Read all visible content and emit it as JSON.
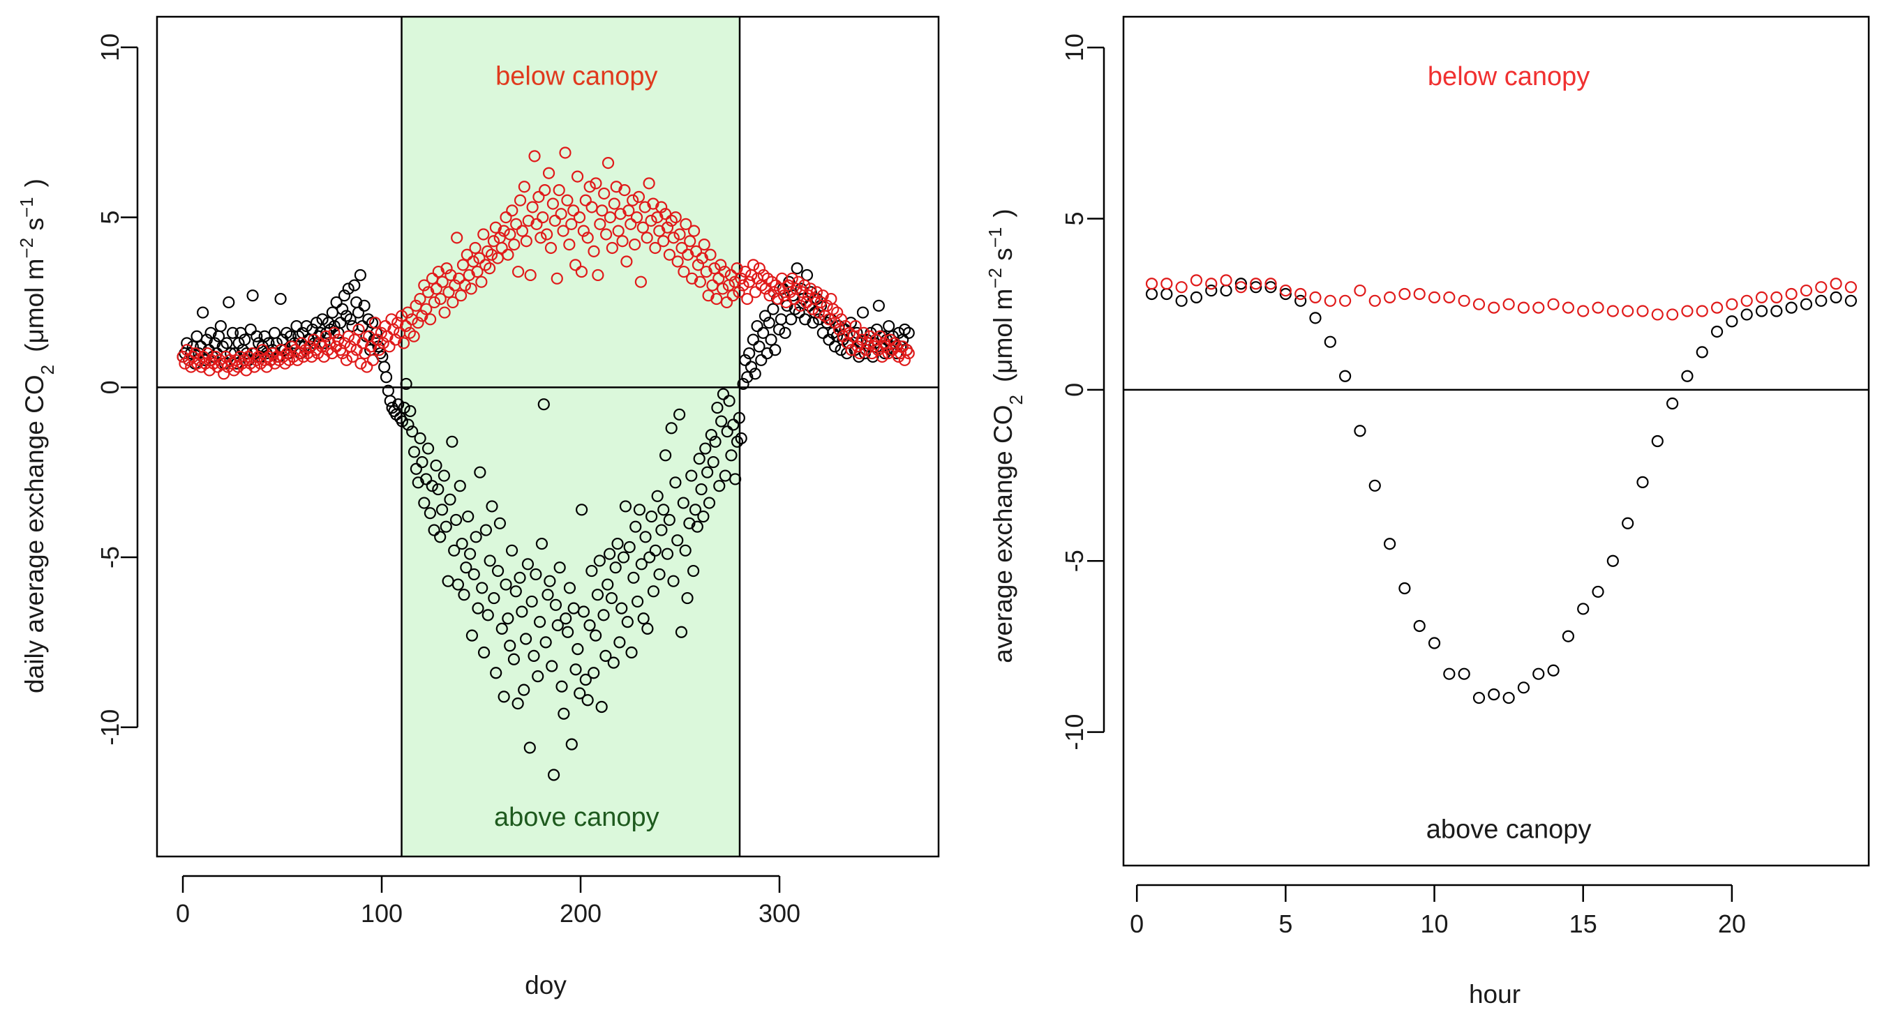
{
  "chart_data": [
    {
      "id": "left",
      "type": "scatter",
      "title": "",
      "xlabel": "doy",
      "ylabel": {
        "pre": "daily average exchange CO",
        "sub": "2",
        "unit_open": "(μmol  m",
        "exp1": "−2",
        "mid": " s",
        "exp2": "−1",
        "unit_close": ")"
      },
      "xlim": [
        -13,
        380
      ],
      "ylim": [
        -13.8,
        10.9
      ],
      "xticks": [
        0,
        100,
        200,
        300
      ],
      "yticks": [
        -10,
        -5,
        0,
        5,
        10
      ],
      "hline": 0,
      "shaded_region": {
        "x": [
          110,
          280
        ],
        "color": "#dbf8db"
      },
      "marker": "open-circle",
      "annotations": [
        {
          "text": "below canopy",
          "x": 198,
          "y": 8.9,
          "color": "#e03a1e"
        },
        {
          "text": "above canopy",
          "x": 198,
          "y": -12.9,
          "color": "#1e5a1e"
        }
      ],
      "series": [
        {
          "name": "above canopy",
          "color": "#000000",
          "values": [
            0.9,
            1.0,
            1.3,
            0.8,
            1.0,
            1.2,
            0.7,
            1.5,
            1.0,
            1.2,
            2.2,
            0.8,
            1.4,
            1.1,
            1.6,
            0.9,
            1.3,
            1.0,
            1.5,
            1.8,
            1.2,
            0.7,
            1.3,
            2.5,
            1.0,
            1.6,
            1.0,
            0.7,
            1.3,
            1.6,
            1.1,
            1.4,
            1.0,
            0.8,
            1.7,
            2.7,
            1.0,
            1.5,
            1.3,
            0.9,
            1.2,
            1.5,
            1.0,
            1.3,
            0.8,
            1.1,
            1.6,
            1.3,
            0.9,
            2.6,
            1.4,
            1.1,
            1.6,
            1.0,
            1.5,
            1.2,
            1.3,
            1.8,
            1.5,
            1.0,
            1.6,
            1.2,
            1.8,
            1.4,
            1.2,
            1.7,
            1.3,
            1.9,
            1.5,
            1.6,
            2.0,
            1.3,
            1.6,
            1.9,
            1.7,
            2.2,
            1.8,
            2.5,
            1.6,
            1.9,
            2.3,
            2.7,
            2.1,
            2.9,
            2.0,
            1.8,
            3.0,
            2.5,
            2.2,
            3.3,
            1.8,
            2.4,
            1.5,
            2.0,
            1.1,
            1.9,
            1.4,
            1.6,
            1.2,
            1.0,
            0.9,
            0.6,
            0.3,
            -0.1,
            -0.4,
            -0.6,
            -0.7,
            -0.8,
            -0.5,
            -0.9,
            -1.0,
            -0.6,
            0.1,
            -1.1,
            -0.7,
            -1.3,
            -1.9,
            -2.4,
            -2.8,
            -1.5,
            -2.2,
            -3.4,
            -2.7,
            -1.8,
            -3.7,
            -2.9,
            -4.2,
            -2.3,
            -3.0,
            -4.4,
            -3.6,
            -2.6,
            -4.1,
            -5.7,
            -3.3,
            -1.6,
            -4.8,
            -3.9,
            -5.8,
            -2.9,
            -4.6,
            -6.1,
            -5.3,
            -3.8,
            -4.9,
            -7.3,
            -5.5,
            -4.4,
            -6.5,
            -2.5,
            -5.9,
            -7.8,
            -4.2,
            -6.7,
            -5.1,
            -3.5,
            -6.2,
            -8.4,
            -5.4,
            -4.0,
            -7.1,
            -9.1,
            -5.8,
            -6.8,
            -7.6,
            -4.8,
            -8.0,
            -6.0,
            -9.3,
            -5.6,
            -6.6,
            -8.9,
            -7.4,
            -5.2,
            -10.6,
            -6.3,
            -7.9,
            -5.5,
            -8.5,
            -6.9,
            -4.6,
            -0.5,
            -7.5,
            -6.1,
            -5.7,
            -8.2,
            -11.4,
            -6.4,
            -7.0,
            -5.3,
            -8.8,
            -9.6,
            -6.8,
            -7.2,
            -5.9,
            -10.5,
            -6.5,
            -8.3,
            -7.7,
            -9.0,
            -3.6,
            -6.6,
            -8.6,
            -9.2,
            -7.0,
            -5.4,
            -8.4,
            -7.3,
            -6.1,
            -5.1,
            -9.4,
            -6.7,
            -7.9,
            -5.8,
            -4.9,
            -6.2,
            -8.1,
            -5.3,
            -4.6,
            -7.5,
            -6.5,
            -5.0,
            -3.5,
            -6.9,
            -4.7,
            -7.8,
            -5.6,
            -4.1,
            -6.3,
            -3.6,
            -5.2,
            -6.8,
            -4.4,
            -7.1,
            -5.0,
            -3.8,
            -6.0,
            -4.8,
            -3.2,
            -5.5,
            -4.2,
            -3.6,
            -2.0,
            -4.9,
            -3.9,
            -1.2,
            -5.7,
            -2.8,
            -4.5,
            -0.8,
            -7.2,
            -3.4,
            -4.8,
            -6.2,
            -4.0,
            -2.6,
            -5.4,
            -3.6,
            -4.1,
            -2.1,
            -3.0,
            -3.8,
            -1.8,
            -2.5,
            -3.4,
            -1.4,
            -2.2,
            -1.6,
            -0.6,
            -2.9,
            -1.0,
            -0.2,
            -2.6,
            -1.3,
            -0.4,
            -2.0,
            -1.1,
            -2.7,
            -1.6,
            -0.9,
            -1.5,
            0.1,
            0.8,
            0.3,
            1.0,
            0.6,
            1.4,
            0.4,
            1.8,
            1.2,
            0.8,
            1.6,
            2.1,
            1.0,
            1.9,
            1.4,
            2.3,
            1.1,
            2.6,
            1.7,
            2.0,
            2.9,
            1.6,
            2.4,
            3.1,
            2.0,
            2.7,
            2.3,
            3.5,
            2.2,
            2.9,
            2.6,
            2.0,
            3.3,
            2.4,
            2.8,
            1.9,
            2.2,
            2.6,
            2.0,
            2.4,
            1.6,
            2.1,
            1.9,
            1.4,
            2.0,
            1.6,
            1.2,
            1.5,
            1.8,
            1.1,
            1.4,
            1.7,
            1.0,
            1.3,
            1.9,
            1.5,
            1.1,
            1.6,
            0.9,
            1.3,
            2.2,
            1.0,
            1.4,
            1.2,
            1.6,
            0.9,
            1.3,
            1.7,
            2.4,
            1.2,
            1.5,
            1.0,
            1.4,
            1.8,
            1.1,
            1.5,
            1.3,
            1.0,
            1.6,
            1.2,
            1.4,
            1.7,
            1.1,
            1.6
          ]
        },
        {
          "name": "below canopy",
          "color": "#e01a1a",
          "values": [
            0.9,
            0.7,
            1.1,
            0.8,
            0.6,
            0.9,
            1.0,
            0.7,
            0.8,
            0.6,
            0.9,
            0.7,
            1.0,
            0.5,
            0.8,
            0.7,
            0.9,
            0.6,
            0.8,
            0.7,
            0.4,
            0.9,
            0.6,
            0.8,
            0.7,
            0.5,
            0.8,
            0.6,
            0.9,
            0.7,
            0.8,
            0.5,
            0.9,
            0.7,
            1.0,
            0.6,
            0.8,
            0.9,
            0.7,
            1.1,
            0.8,
            0.6,
            0.9,
            0.8,
            1.0,
            0.7,
            0.9,
            0.8,
            1.1,
            0.9,
            0.7,
            1.0,
            0.8,
            1.2,
            0.9,
            1.1,
            0.8,
            1.0,
            1.3,
            0.9,
            1.1,
            1.0,
            1.2,
            0.9,
            1.4,
            1.1,
            1.0,
            1.3,
            1.2,
            0.9,
            1.5,
            1.1,
            1.3,
            1.0,
            1.6,
            1.2,
            1.4,
            1.1,
            1.0,
            1.3,
            0.8,
            1.5,
            1.2,
            0.9,
            1.4,
            1.1,
            1.7,
            0.7,
            1.3,
            1.0,
            0.6,
            1.5,
            1.2,
            0.8,
            1.9,
            1.4,
            1.1,
            1.6,
            1.3,
            1.8,
            1.5,
            1.2,
            2.0,
            1.7,
            1.4,
            1.9,
            1.6,
            2.1,
            1.3,
            1.8,
            2.2,
            1.6,
            2.0,
            1.5,
            2.4,
            1.9,
            2.6,
            2.1,
            3.0,
            2.3,
            2.8,
            2.0,
            3.2,
            2.5,
            2.9,
            3.4,
            2.6,
            3.1,
            2.2,
            3.5,
            2.8,
            3.3,
            2.5,
            3.0,
            4.4,
            3.2,
            2.7,
            3.6,
            3.0,
            3.9,
            3.3,
            2.9,
            3.7,
            4.1,
            3.4,
            3.8,
            3.1,
            4.5,
            3.6,
            4.0,
            3.5,
            3.9,
            4.3,
            4.7,
            3.8,
            4.4,
            4.1,
            4.6,
            5.0,
            3.9,
            4.5,
            5.2,
            4.2,
            4.8,
            3.4,
            5.5,
            4.6,
            5.9,
            4.3,
            4.9,
            3.3,
            5.3,
            6.8,
            4.8,
            5.6,
            4.4,
            5.0,
            5.8,
            4.5,
            6.3,
            4.1,
            5.4,
            4.9,
            3.2,
            5.8,
            5.1,
            4.6,
            6.9,
            5.5,
            4.2,
            4.8,
            5.2,
            3.6,
            6.2,
            5.0,
            3.4,
            4.6,
            5.5,
            4.4,
            5.9,
            5.3,
            4.0,
            6.0,
            3.3,
            4.8,
            5.2,
            5.7,
            4.5,
            6.6,
            5.0,
            4.1,
            5.4,
            5.9,
            4.6,
            5.1,
            4.3,
            5.8,
            3.7,
            5.2,
            4.8,
            5.5,
            4.2,
            5.0,
            5.6,
            3.1,
            4.7,
            5.3,
            4.4,
            6.0,
            4.9,
            5.4,
            4.1,
            5.0,
            4.6,
            5.3,
            4.3,
            5.1,
            4.7,
            3.9,
            4.9,
            4.4,
            5.0,
            3.7,
            4.5,
            4.1,
            3.4,
            4.8,
            3.9,
            4.3,
            3.2,
            4.6,
            4.0,
            3.6,
            3.1,
            3.8,
            4.2,
            3.4,
            2.7,
            3.9,
            3.0,
            3.5,
            2.6,
            3.2,
            3.6,
            2.9,
            3.4,
            2.5,
            3.0,
            3.3,
            2.7,
            3.1,
            3.5,
            2.8,
            3.2,
            3.0,
            3.4,
            2.6,
            3.1,
            3.3,
            3.6,
            2.8,
            3.2,
            3.5,
            3.0,
            3.3,
            2.9,
            3.2,
            2.7,
            3.1,
            2.8,
            3.0,
            2.6,
            2.9,
            3.2,
            2.7,
            2.5,
            3.0,
            2.8,
            3.2,
            2.6,
            2.9,
            3.1,
            2.4,
            2.8,
            3.0,
            2.5,
            2.7,
            2.9,
            2.3,
            2.6,
            2.8,
            2.2,
            2.5,
            2.7,
            2.1,
            2.4,
            2.0,
            2.6,
            2.3,
            1.9,
            2.2,
            1.7,
            2.0,
            1.5,
            1.8,
            1.3,
            1.6,
            1.1,
            1.5,
            1.8,
            1.2,
            1.0,
            1.4,
            1.6,
            1.1,
            1.3,
            1.5,
            1.0,
            1.2,
            1.4,
            1.1,
            1.5,
            0.9,
            1.3,
            1.2,
            1.0,
            1.4,
            1.1,
            1.3,
            1.2,
            0.9,
            1.0,
            1.2,
            0.8,
            1.1,
            1.0
          ]
        }
      ]
    },
    {
      "id": "right",
      "type": "scatter",
      "title": "",
      "xlabel": "hour",
      "ylabel": {
        "pre": "average exchange CO",
        "sub": "2",
        "unit_open": "(μmol  m",
        "exp1": "−2",
        "mid": " s",
        "exp2": "−1",
        "unit_close": ")"
      },
      "xlim": [
        -0.45,
        24.6
      ],
      "ylim": [
        -13.9,
        10.9
      ],
      "xticks": [
        0,
        5,
        10,
        15,
        20
      ],
      "yticks": [
        -10,
        -5,
        0,
        5,
        10
      ],
      "hline": 0,
      "marker": "open-circle",
      "annotations": [
        {
          "text": "below canopy",
          "x": 12.5,
          "y": 8.9,
          "color": "#f03030"
        },
        {
          "text": "above canopy",
          "x": 12.5,
          "y": -13.1,
          "color": "#1a1a1a"
        }
      ],
      "series": [
        {
          "name": "above canopy",
          "color": "#000000",
          "x": [
            0.5,
            1,
            1.5,
            2,
            2.5,
            3,
            3.5,
            4,
            4.5,
            5,
            5.5,
            6,
            6.5,
            7,
            7.5,
            8,
            8.5,
            9,
            9.5,
            10,
            10.5,
            11,
            11.5,
            12,
            12.5,
            13,
            13.5,
            14,
            14.5,
            15,
            15.5,
            16,
            16.5,
            17,
            17.5,
            18,
            18.5,
            19,
            19.5,
            20,
            20.5,
            21,
            21.5,
            22,
            22.5,
            23,
            23.5,
            24
          ],
          "values": [
            2.8,
            2.8,
            2.6,
            2.7,
            2.9,
            2.9,
            3.1,
            3.0,
            3.0,
            2.8,
            2.6,
            2.1,
            1.4,
            0.4,
            -1.2,
            -2.8,
            -4.5,
            -5.8,
            -6.9,
            -7.4,
            -8.3,
            -8.3,
            -9.0,
            -8.9,
            -9.0,
            -8.7,
            -8.3,
            -8.2,
            -7.2,
            -6.4,
            -5.9,
            -5.0,
            -3.9,
            -2.7,
            -1.5,
            -0.4,
            0.4,
            1.1,
            1.7,
            2.0,
            2.2,
            2.3,
            2.3,
            2.4,
            2.5,
            2.6,
            2.7,
            2.6
          ]
        },
        {
          "name": "below canopy",
          "color": "#e01a1a",
          "x": [
            0.5,
            1,
            1.5,
            2,
            2.5,
            3,
            3.5,
            4,
            4.5,
            5,
            5.5,
            6,
            6.5,
            7,
            7.5,
            8,
            8.5,
            9,
            9.5,
            10,
            10.5,
            11,
            11.5,
            12,
            12.5,
            13,
            13.5,
            14,
            14.5,
            15,
            15.5,
            16,
            16.5,
            17,
            17.5,
            18,
            18.5,
            19,
            19.5,
            20,
            20.5,
            21,
            21.5,
            22,
            22.5,
            23,
            23.5,
            24
          ],
          "values": [
            3.1,
            3.1,
            3.0,
            3.2,
            3.1,
            3.2,
            3.0,
            3.1,
            3.1,
            2.9,
            2.8,
            2.7,
            2.6,
            2.6,
            2.9,
            2.6,
            2.7,
            2.8,
            2.8,
            2.7,
            2.7,
            2.6,
            2.5,
            2.4,
            2.5,
            2.4,
            2.4,
            2.5,
            2.4,
            2.3,
            2.4,
            2.3,
            2.3,
            2.3,
            2.2,
            2.2,
            2.3,
            2.3,
            2.4,
            2.5,
            2.6,
            2.7,
            2.7,
            2.8,
            2.9,
            3.0,
            3.1,
            3.0
          ]
        }
      ]
    }
  ]
}
